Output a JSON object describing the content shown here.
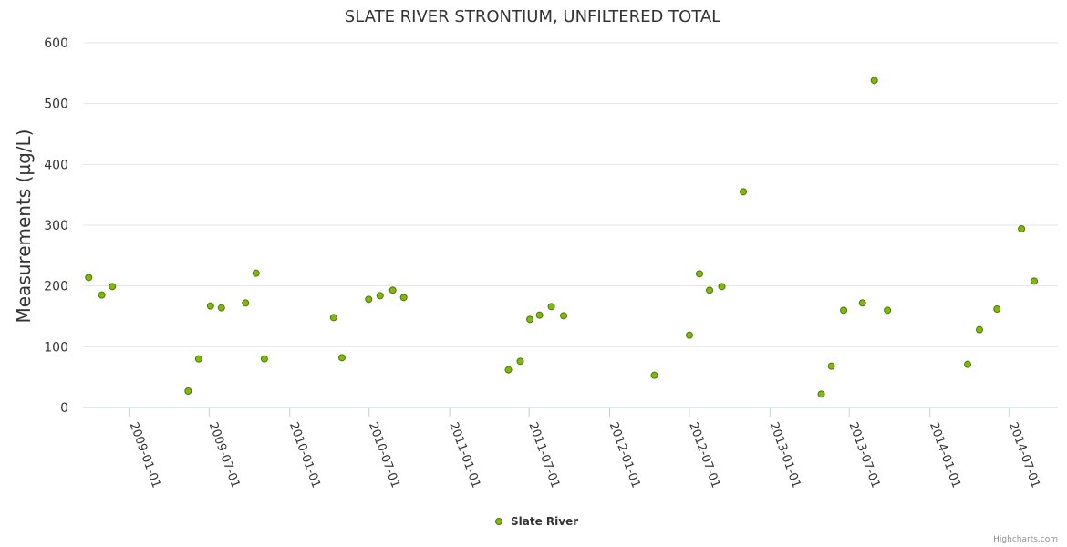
{
  "chart_data": {
    "type": "scatter",
    "title": "SLATE RIVER STRONTIUM, UNFILTERED TOTAL",
    "xlabel": "",
    "ylabel": "Measurements (µg/L)",
    "ylim": [
      0,
      600
    ],
    "xlim": [
      "2008-09-16",
      "2014-10-20"
    ],
    "yticks": [
      0,
      100,
      200,
      300,
      400,
      500,
      600
    ],
    "xticks": [
      "2009-01-01",
      "2009-07-01",
      "2010-01-01",
      "2010-07-01",
      "2011-01-01",
      "2011-07-01",
      "2012-01-01",
      "2012-07-01",
      "2013-01-01",
      "2013-07-01",
      "2014-01-01",
      "2014-07-01"
    ],
    "grid": true,
    "legend": "bottom-center",
    "series": [
      {
        "name": "Slate River",
        "color": "#7cb5ec",
        "points": [
          {
            "x": "2008-09-29",
            "y": 214
          },
          {
            "x": "2008-10-29",
            "y": 185
          },
          {
            "x": "2008-11-22",
            "y": 199
          },
          {
            "x": "2009-05-14",
            "y": 27
          },
          {
            "x": "2009-06-07",
            "y": 80
          },
          {
            "x": "2009-07-04",
            "y": 167
          },
          {
            "x": "2009-07-29",
            "y": 164
          },
          {
            "x": "2009-09-22",
            "y": 172
          },
          {
            "x": "2009-10-16",
            "y": 221
          },
          {
            "x": "2009-11-04",
            "y": 80
          },
          {
            "x": "2010-04-11",
            "y": 148
          },
          {
            "x": "2010-04-30",
            "y": 82
          },
          {
            "x": "2010-06-30",
            "y": 178
          },
          {
            "x": "2010-07-26",
            "y": 184
          },
          {
            "x": "2010-08-24",
            "y": 193
          },
          {
            "x": "2010-09-18",
            "y": 181
          },
          {
            "x": "2011-05-15",
            "y": 62
          },
          {
            "x": "2011-06-11",
            "y": 76
          },
          {
            "x": "2011-07-03",
            "y": 145
          },
          {
            "x": "2011-07-25",
            "y": 152
          },
          {
            "x": "2011-08-21",
            "y": 166
          },
          {
            "x": "2011-09-18",
            "y": 151
          },
          {
            "x": "2012-04-12",
            "y": 53
          },
          {
            "x": "2012-07-01",
            "y": 119
          },
          {
            "x": "2012-07-24",
            "y": 220
          },
          {
            "x": "2012-08-16",
            "y": 193
          },
          {
            "x": "2012-09-13",
            "y": 199
          },
          {
            "x": "2012-11-01",
            "y": 355
          },
          {
            "x": "2013-04-28",
            "y": 22
          },
          {
            "x": "2013-05-21",
            "y": 68
          },
          {
            "x": "2013-06-18",
            "y": 160
          },
          {
            "x": "2013-07-31",
            "y": 172
          },
          {
            "x": "2013-08-27",
            "y": 538
          },
          {
            "x": "2013-09-26",
            "y": 160
          },
          {
            "x": "2014-03-28",
            "y": 71
          },
          {
            "x": "2014-04-24",
            "y": 128
          },
          {
            "x": "2014-06-03",
            "y": 162
          },
          {
            "x": "2014-07-29",
            "y": 294
          },
          {
            "x": "2014-08-27",
            "y": 208
          }
        ]
      }
    ]
  },
  "credit": "Highcharts.com"
}
